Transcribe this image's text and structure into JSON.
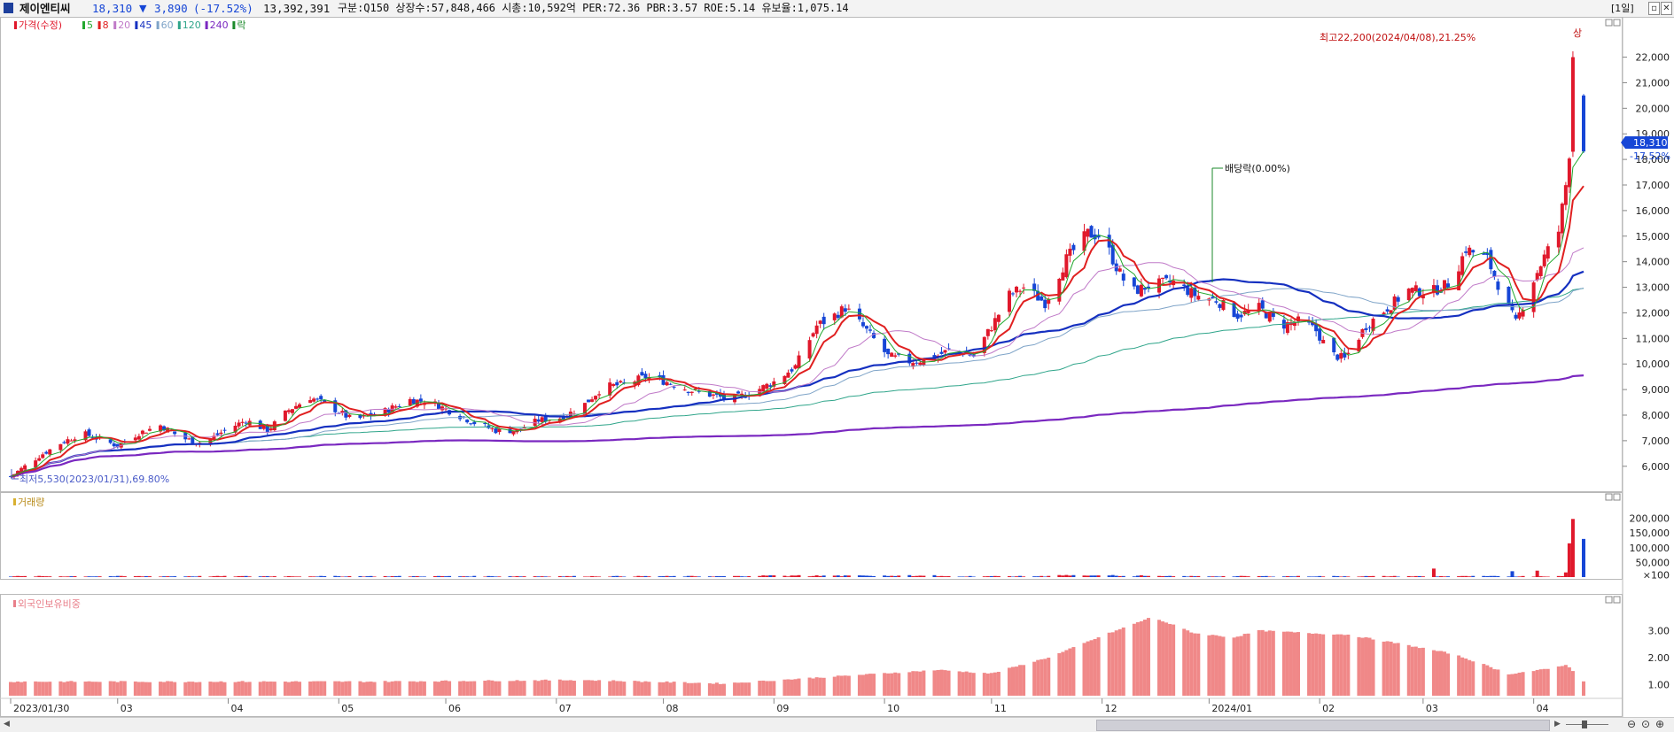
{
  "topbar": {
    "stock_name": "제이엔티씨",
    "price": "18,310",
    "change_arrow": "▼",
    "change": "3,890",
    "change_pct": "(-17.52%)",
    "volume": "13,392,391",
    "info": "구분:Q150 상장수:57,848,466 시총:10,592억 PER:72.36 PBR:3.57 ROE:5.14 유보율:1,075.14",
    "period_button": "[1일]",
    "colors": {
      "down": "#1646d6",
      "text": "#111111"
    }
  },
  "price_legend": [
    {
      "label": "가격(수정)",
      "color": "#e0182b"
    },
    {
      "label": "5",
      "color": "#22a82e"
    },
    {
      "label": "8",
      "color": "#e02020"
    },
    {
      "label": "20",
      "color": "#c07ac8"
    },
    {
      "label": "45",
      "color": "#1530c0"
    },
    {
      "label": "60",
      "color": "#7fa4c8"
    },
    {
      "label": "120",
      "color": "#2fa58a"
    },
    {
      "label": "240",
      "color": "#7a28c0"
    },
    {
      "label": "락",
      "color": "#1b8a2b"
    }
  ],
  "annotations": {
    "high": "최고22,200(2024/04/08),21.25%",
    "high_mark": "상",
    "low": "최저5,530(2023/01/31),69.80%",
    "dividend": "배당락(0.00%)",
    "current_price_tag": "18,310",
    "current_pct": "-17.52%"
  },
  "volume_panel": {
    "title": "거래량",
    "axis": [
      "200,000",
      "150,000",
      "100,000",
      "50,000",
      "×100"
    ]
  },
  "foreign_panel": {
    "title": "외국인보유비중",
    "axis": [
      "3.00",
      "2.00",
      "1.00"
    ]
  },
  "chart_data": {
    "type": "candlestick",
    "series_colors": {
      "up": "#e0182b",
      "down": "#1646d6"
    },
    "y_axis": {
      "ticks": [
        "22,000",
        "21,000",
        "20,000",
        "19,000",
        "18,000",
        "17,000",
        "16,000",
        "15,000",
        "14,000",
        "13,000",
        "12,000",
        "11,000",
        "10,000",
        "9,000",
        "8,000",
        "7,000",
        "6,000"
      ],
      "range": [
        5300,
        23300
      ]
    },
    "x_ticks": [
      "2023/01/30",
      "03",
      "04",
      "05",
      "06",
      "07",
      "08",
      "09",
      "10",
      "11",
      "12",
      "2024/01",
      "02",
      "03",
      "04"
    ],
    "x_tick_days": [
      0,
      30,
      61,
      92,
      122,
      153,
      183,
      214,
      245,
      275,
      306,
      336,
      367,
      396,
      427
    ],
    "end_day": 441,
    "price_anchors": [
      [
        0,
        5600
      ],
      [
        4,
        6000
      ],
      [
        8,
        6400
      ],
      [
        14,
        6900
      ],
      [
        20,
        7300
      ],
      [
        26,
        7000
      ],
      [
        30,
        6800
      ],
      [
        36,
        7300
      ],
      [
        42,
        7600
      ],
      [
        48,
        7100
      ],
      [
        54,
        6900
      ],
      [
        60,
        7400
      ],
      [
        66,
        7800
      ],
      [
        72,
        7400
      ],
      [
        78,
        8200
      ],
      [
        84,
        8700
      ],
      [
        90,
        8300
      ],
      [
        96,
        7800
      ],
      [
        104,
        8100
      ],
      [
        112,
        8600
      ],
      [
        118,
        8500
      ],
      [
        124,
        8100
      ],
      [
        130,
        7700
      ],
      [
        136,
        7400
      ],
      [
        142,
        7400
      ],
      [
        148,
        7800
      ],
      [
        154,
        7900
      ],
      [
        160,
        8300
      ],
      [
        166,
        9100
      ],
      [
        172,
        9200
      ],
      [
        178,
        9500
      ],
      [
        184,
        9300
      ],
      [
        190,
        9000
      ],
      [
        196,
        8800
      ],
      [
        202,
        8600
      ],
      [
        208,
        8900
      ],
      [
        214,
        9300
      ],
      [
        220,
        9900
      ],
      [
        226,
        11500
      ],
      [
        230,
        11800
      ],
      [
        234,
        12200
      ],
      [
        240,
        11300
      ],
      [
        246,
        10300
      ],
      [
        252,
        10100
      ],
      [
        258,
        10200
      ],
      [
        264,
        10600
      ],
      [
        270,
        10300
      ],
      [
        276,
        11700
      ],
      [
        280,
        12700
      ],
      [
        284,
        13000
      ],
      [
        290,
        12400
      ],
      [
        296,
        14100
      ],
      [
        302,
        15100
      ],
      [
        306,
        15000
      ],
      [
        310,
        13800
      ],
      [
        314,
        12800
      ],
      [
        320,
        13100
      ],
      [
        326,
        13200
      ],
      [
        332,
        12700
      ],
      [
        338,
        12500
      ],
      [
        344,
        11900
      ],
      [
        350,
        12200
      ],
      [
        356,
        11500
      ],
      [
        362,
        11700
      ],
      [
        366,
        11300
      ],
      [
        370,
        10400
      ],
      [
        374,
        10200
      ],
      [
        380,
        11500
      ],
      [
        386,
        12200
      ],
      [
        392,
        12900
      ],
      [
        398,
        12800
      ],
      [
        404,
        13200
      ],
      [
        408,
        14500
      ],
      [
        414,
        14100
      ],
      [
        418,
        12800
      ],
      [
        422,
        11600
      ],
      [
        426,
        13000
      ],
      [
        430,
        14200
      ],
      [
        434,
        15200
      ],
      [
        436,
        17000
      ],
      [
        437,
        18300
      ],
      [
        438,
        22000
      ],
      [
        439,
        20200
      ],
      [
        441,
        18310
      ]
    ],
    "volume_spikes": [
      [
        399,
        29000
      ],
      [
        421,
        20000
      ],
      [
        428,
        22000
      ],
      [
        436,
        16000
      ],
      [
        437,
        115000
      ],
      [
        438,
        198000
      ],
      [
        441,
        130000
      ]
    ],
    "foreign_ratio_anchors": [
      [
        0,
        1.12
      ],
      [
        100,
        1.12
      ],
      [
        160,
        1.18
      ],
      [
        200,
        1.05
      ],
      [
        230,
        1.3
      ],
      [
        260,
        1.55
      ],
      [
        275,
        1.42
      ],
      [
        292,
        2.05
      ],
      [
        305,
        2.75
      ],
      [
        320,
        3.5
      ],
      [
        332,
        2.9
      ],
      [
        343,
        2.75
      ],
      [
        350,
        3.0
      ],
      [
        365,
        2.9
      ],
      [
        375,
        2.85
      ],
      [
        390,
        2.5
      ],
      [
        404,
        2.15
      ],
      [
        412,
        1.8
      ],
      [
        420,
        1.4
      ],
      [
        432,
        1.6
      ],
      [
        436,
        1.75
      ],
      [
        441,
        1.15
      ]
    ]
  }
}
